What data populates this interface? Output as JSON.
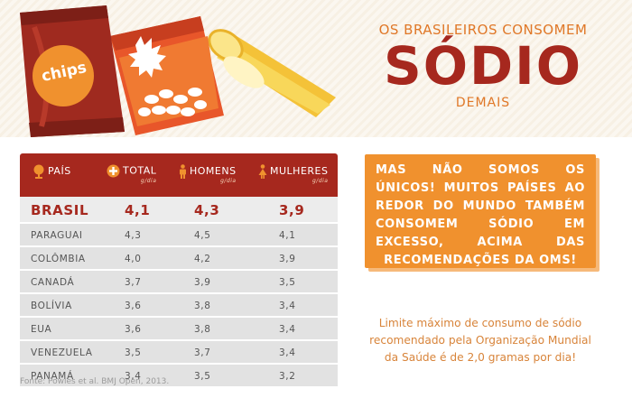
{
  "illustration": {
    "bag_label": "chips"
  },
  "headline": {
    "top": "OS BRASILEIROS CONSOMEM",
    "big": "SÓDIO",
    "bottom": "DEMAIS"
  },
  "table": {
    "headers": [
      {
        "label": "PAÍS",
        "icon": "globe-icon",
        "sub": ""
      },
      {
        "label": "TOTAL",
        "icon": "plus-circle-icon",
        "sub": "g/dia"
      },
      {
        "label": "HOMENS",
        "icon": "male-person-icon",
        "sub": "g/dia"
      },
      {
        "label": "MULHERES",
        "icon": "female-person-icon",
        "sub": "g/dia"
      }
    ],
    "rows": [
      {
        "pais": "BRASIL",
        "total": "4,1",
        "homens": "4,3",
        "mulheres": "3,9"
      },
      {
        "pais": "PARAGUAI",
        "total": "4,3",
        "homens": "4,5",
        "mulheres": "4,1"
      },
      {
        "pais": "COLÔMBIA",
        "total": "4,0",
        "homens": "4,2",
        "mulheres": "3,9"
      },
      {
        "pais": "CANADÁ",
        "total": "3,7",
        "homens": "3,9",
        "mulheres": "3,5"
      },
      {
        "pais": "BOLÍVIA",
        "total": "3,6",
        "homens": "3,8",
        "mulheres": "3,4"
      },
      {
        "pais": "EUA",
        "total": "3,6",
        "homens": "3,8",
        "mulheres": "3,4"
      },
      {
        "pais": "VENEZUELA",
        "total": "3,5",
        "homens": "3,7",
        "mulheres": "3,4"
      },
      {
        "pais": "PANAMÁ",
        "total": "3,4",
        "homens": "3,5",
        "mulheres": "3,2"
      }
    ]
  },
  "source": "Fonte: Powles et al. BMJ Open, 2013.",
  "callout": "MAS NÃO SOMOS OS ÚNICOS! MUITOS PAÍSES AO REDOR DO MUNDO TAMBÉM CONSOMEM SÓDIO EM EXCESSO, ACIMA DAS RECOMENDAÇÕES DA OMS!",
  "note": "Limite máximo de consumo de sódio recomendado pela Organização Mundial da Saúde é de 2,0 gramas por dia!",
  "colors": {
    "red": "#a6281e",
    "orange": "#f0912e",
    "row": "#e2e2e2"
  }
}
